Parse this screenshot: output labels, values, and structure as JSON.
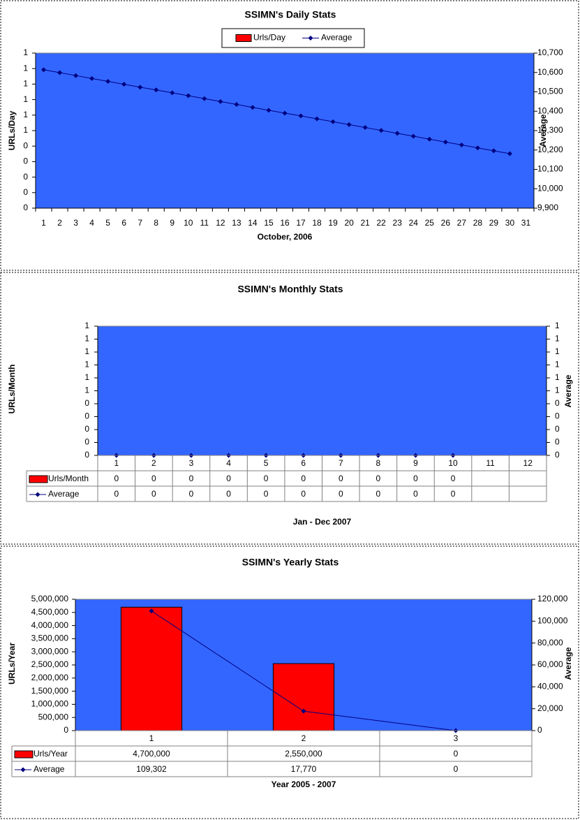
{
  "chart_data": [
    {
      "type": "bar_line",
      "title": "SSIMN's Daily Stats",
      "x_label": "October, 2006",
      "y_label": "URLs/Day",
      "y2_label": "Average",
      "legend": "top",
      "plot_color": "#3366FF",
      "categories": [
        "1",
        "2",
        "3",
        "4",
        "5",
        "6",
        "7",
        "8",
        "9",
        "10",
        "11",
        "12",
        "13",
        "14",
        "15",
        "16",
        "17",
        "18",
        "19",
        "20",
        "21",
        "22",
        "23",
        "24",
        "25",
        "26",
        "27",
        "28",
        "29",
        "30",
        "31"
      ],
      "series": [
        {
          "name": "Urls/Day",
          "color": "#FF0000",
          "values": [
            0,
            0,
            0,
            0,
            0,
            0,
            0,
            0,
            0,
            0,
            0,
            0,
            0,
            0,
            0,
            0,
            0,
            0,
            0,
            0,
            0,
            0,
            0,
            0,
            0,
            0,
            0,
            0,
            0,
            0,
            null
          ]
        },
        {
          "name": "Average",
          "color": "#000080",
          "axis": "y2",
          "values": [
            10614,
            10599,
            10584,
            10569,
            10554,
            10539,
            10524,
            10510,
            10495,
            10480,
            10465,
            10450,
            10435,
            10420,
            10405,
            10390,
            10376,
            10361,
            10346,
            10331,
            10316,
            10301,
            10286,
            10271,
            10256,
            10241,
            10226,
            10211,
            10196,
            10181,
            null
          ]
        }
      ],
      "ylim": [
        0,
        1
      ],
      "yticks": [
        0,
        {
          "value": 0.1,
          "label": "0"
        },
        {
          "value": 0.2,
          "label": "0"
        },
        {
          "value": 0.3,
          "label": "0"
        },
        {
          "value": 0.4,
          "label": "0"
        },
        {
          "value": 0.5,
          "label": "1"
        },
        {
          "value": 0.6,
          "label": "1"
        },
        {
          "value": 0.7,
          "label": "1"
        },
        {
          "value": 0.8,
          "label": "1"
        },
        {
          "value": 0.9,
          "label": "1"
        },
        1
      ],
      "y2lim": [
        9900,
        10700
      ],
      "y2ticks": [
        {
          "value": 9900,
          "label": "9,900"
        },
        {
          "value": 10000,
          "label": "10,000"
        },
        {
          "value": 10100,
          "label": "10,100"
        },
        {
          "value": 10200,
          "label": "10,200"
        },
        {
          "value": 10300,
          "label": "10,300"
        },
        {
          "value": 10400,
          "label": "10,400"
        },
        {
          "value": 10500,
          "label": "10,500"
        },
        {
          "value": 10600,
          "label": "10,600"
        },
        {
          "value": 10700,
          "label": "10,700"
        }
      ]
    },
    {
      "type": "bar_line",
      "title": "SSIMN's Monthly Stats",
      "x_label": "Jan - Dec 2007",
      "y_label": "URLs/Month",
      "y2_label": "Average",
      "data_table": true,
      "plot_color": "#3366FF",
      "categories": [
        "1",
        "2",
        "3",
        "4",
        "5",
        "6",
        "7",
        "8",
        "9",
        "10",
        "11",
        "12"
      ],
      "series": [
        {
          "name": "Urls/Month",
          "color": "#FF0000",
          "values": [
            0,
            0,
            0,
            0,
            0,
            0,
            0,
            0,
            0,
            0,
            null,
            null
          ]
        },
        {
          "name": "Average",
          "color": "#000080",
          "axis": "y2",
          "values": [
            0,
            0,
            0,
            0,
            0,
            0,
            0,
            0,
            0,
            0,
            null,
            null
          ]
        }
      ],
      "ylim": [
        0,
        1
      ],
      "yticks": [
        0,
        {
          "value": 0.1,
          "label": "0"
        },
        {
          "value": 0.2,
          "label": "0"
        },
        {
          "value": 0.3,
          "label": "0"
        },
        {
          "value": 0.4,
          "label": "0"
        },
        {
          "value": 0.5,
          "label": "1"
        },
        {
          "value": 0.6,
          "label": "1"
        },
        {
          "value": 0.7,
          "label": "1"
        },
        {
          "value": 0.8,
          "label": "1"
        },
        {
          "value": 0.9,
          "label": "1"
        },
        1
      ],
      "y2lim": [
        0,
        1
      ],
      "y2ticks": [
        0,
        {
          "value": 0.1,
          "label": "0"
        },
        {
          "value": 0.2,
          "label": "0"
        },
        {
          "value": 0.3,
          "label": "0"
        },
        {
          "value": 0.4,
          "label": "0"
        },
        {
          "value": 0.5,
          "label": "1"
        },
        {
          "value": 0.6,
          "label": "1"
        },
        {
          "value": 0.7,
          "label": "1"
        },
        {
          "value": 0.8,
          "label": "1"
        },
        {
          "value": 0.9,
          "label": "1"
        },
        1
      ]
    },
    {
      "type": "bar_line",
      "title": "SSIMN's Yearly Stats",
      "x_label": "Year 2005 - 2007",
      "y_label": "URLs/Year",
      "y2_label": "Average",
      "data_table": true,
      "plot_color": "#3366FF",
      "categories": [
        "1",
        "2",
        "3"
      ],
      "series": [
        {
          "name": "Urls/Year",
          "color": "#FF0000",
          "values": [
            4700000,
            2550000,
            0
          ],
          "value_labels": [
            "4,700,000",
            "2,550,000",
            "0"
          ]
        },
        {
          "name": "Average",
          "color": "#000080",
          "axis": "y2",
          "values": [
            109302,
            17770,
            0
          ],
          "value_labels": [
            "109,302",
            "17,770",
            "0"
          ]
        }
      ],
      "ylim": [
        0,
        5000000
      ],
      "yticks": [
        0,
        {
          "value": 500000,
          "label": "500,000"
        },
        {
          "value": 1000000,
          "label": "1,000,000"
        },
        {
          "value": 1500000,
          "label": "1,500,000"
        },
        {
          "value": 2000000,
          "label": "2,000,000"
        },
        {
          "value": 2500000,
          "label": "2,500,000"
        },
        {
          "value": 3000000,
          "label": "3,000,000"
        },
        {
          "value": 3500000,
          "label": "3,500,000"
        },
        {
          "value": 4000000,
          "label": "4,000,000"
        },
        {
          "value": 4500000,
          "label": "4,500,000"
        },
        {
          "value": 5000000,
          "label": "5,000,000"
        }
      ],
      "y2lim": [
        0,
        120000
      ],
      "y2ticks": [
        0,
        {
          "value": 20000,
          "label": "20,000"
        },
        {
          "value": 40000,
          "label": "40,000"
        },
        {
          "value": 60000,
          "label": "60,000"
        },
        {
          "value": 80000,
          "label": "80,000"
        },
        {
          "value": 100000,
          "label": "100,000"
        },
        {
          "value": 120000,
          "label": "120,000"
        }
      ]
    }
  ]
}
